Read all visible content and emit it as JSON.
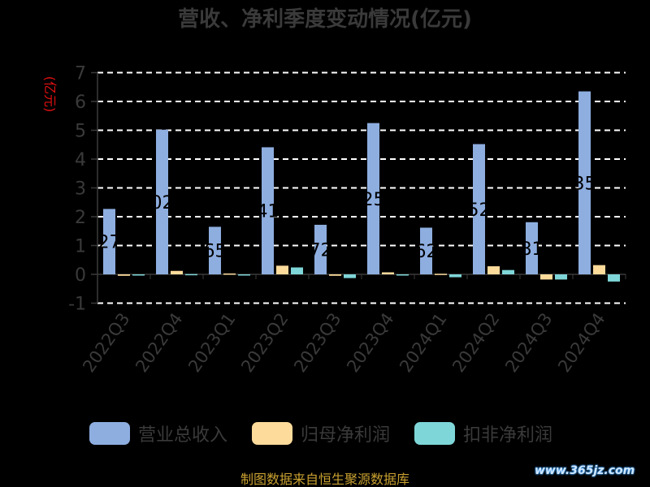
{
  "chart_data": {
    "type": "bar",
    "title": "营收、净利季度变动情况(亿元)",
    "ylabel": "(亿元)",
    "categories": [
      "2022Q3",
      "2022Q4",
      "2023Q1",
      "2023Q2",
      "2023Q3",
      "2023Q4",
      "2024Q1",
      "2024Q2",
      "2024Q3",
      "2024Q4"
    ],
    "series": [
      {
        "name": "营业总收入",
        "values": [
          2.27,
          5.02,
          1.65,
          4.41,
          1.72,
          5.25,
          1.62,
          4.52,
          1.81,
          6.35
        ]
      },
      {
        "name": "归母净利润",
        "values": [
          -0.05,
          0.12,
          0.03,
          0.3,
          -0.05,
          0.07,
          0.02,
          0.28,
          -0.18,
          0.32
        ]
      },
      {
        "name": "扣非净利润",
        "values": [
          0.0,
          0.01,
          -0.02,
          0.24,
          -0.13,
          -0.02,
          -0.1,
          0.15,
          -0.18,
          -0.25
        ]
      }
    ],
    "bar_labels": [
      "27",
      "02",
      "65",
      "41",
      "72",
      "25",
      "62",
      "52",
      "81",
      "35"
    ],
    "ylim": [
      -1,
      7
    ],
    "yticks": [
      -1,
      0,
      1,
      2,
      3,
      4,
      5,
      6,
      7
    ],
    "grid": true,
    "legend_position": "bottom",
    "colors": [
      "#8eaee0",
      "#fddb9b",
      "#7fd6d8"
    ],
    "source": "制图数据来自恒生聚源数据库",
    "watermark": "www.365jz.com"
  }
}
